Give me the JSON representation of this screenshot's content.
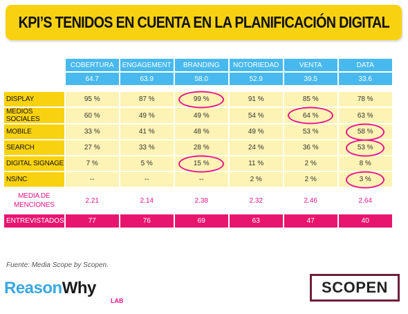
{
  "title": "KPI’S TENIDOS EN CUENTA EN LA PLANIFICACIÓN DIGITAL",
  "columns": [
    "COBERTURA",
    "ENGAGEMENT",
    "BRANDING",
    "NOTORIEDAD",
    "VENTA",
    "DATA"
  ],
  "column_scores": [
    "64.7",
    "63.9",
    "58.0",
    "52.9",
    "39.5",
    "33.6"
  ],
  "rows": [
    {
      "label": "DISPLAY",
      "values": [
        "95 %",
        "87 %",
        "99 %",
        "91 %",
        "85 %",
        "78 %"
      ],
      "highlight": [
        2
      ]
    },
    {
      "label": "MEDIOS SOCIALES",
      "values": [
        "60 %",
        "49 %",
        "49 %",
        "54 %",
        "64 %",
        "63 %"
      ],
      "highlight": [
        4
      ]
    },
    {
      "label": "MOBILE",
      "values": [
        "33 %",
        "41 %",
        "48 %",
        "49 %",
        "53 %",
        "58 %"
      ],
      "highlight": [
        5
      ]
    },
    {
      "label": "SEARCH",
      "values": [
        "27 %",
        "33 %",
        "28 %",
        "24 %",
        "36 %",
        "53 %"
      ],
      "highlight": [
        5
      ]
    },
    {
      "label": "DIGITAL SIGNAGE",
      "values": [
        "7 %",
        "5 %",
        "15 %",
        "11 %",
        "2 %",
        "8 %"
      ],
      "highlight": [
        2
      ]
    },
    {
      "label": "NS/NC",
      "values": [
        "--",
        "--",
        "--",
        "2 %",
        "2 %",
        "3 %"
      ],
      "highlight": [
        5
      ]
    }
  ],
  "media": {
    "label_line1": "MEDIA DE",
    "label_line2": "MENCIONES",
    "values": [
      "2.21",
      "2.14",
      "2.38",
      "2.32",
      "2.46",
      "2.64"
    ]
  },
  "entrevistados": {
    "label": "ENTREVISTADOS",
    "values": [
      "77",
      "76",
      "69",
      "63",
      "47",
      "40"
    ]
  },
  "source": "Fuente: Media Scope by Scopen.",
  "logos": {
    "reason": "Reason",
    "why": "Why",
    "lab": "LAB",
    "scopen": "SCOPEN"
  },
  "colors": {
    "yellow": "#f9d20f",
    "light_yellow": "#fdf3b4",
    "blue": "#47b9ef",
    "magenta": "#e8158c",
    "pink_bar": "#e8156f"
  }
}
